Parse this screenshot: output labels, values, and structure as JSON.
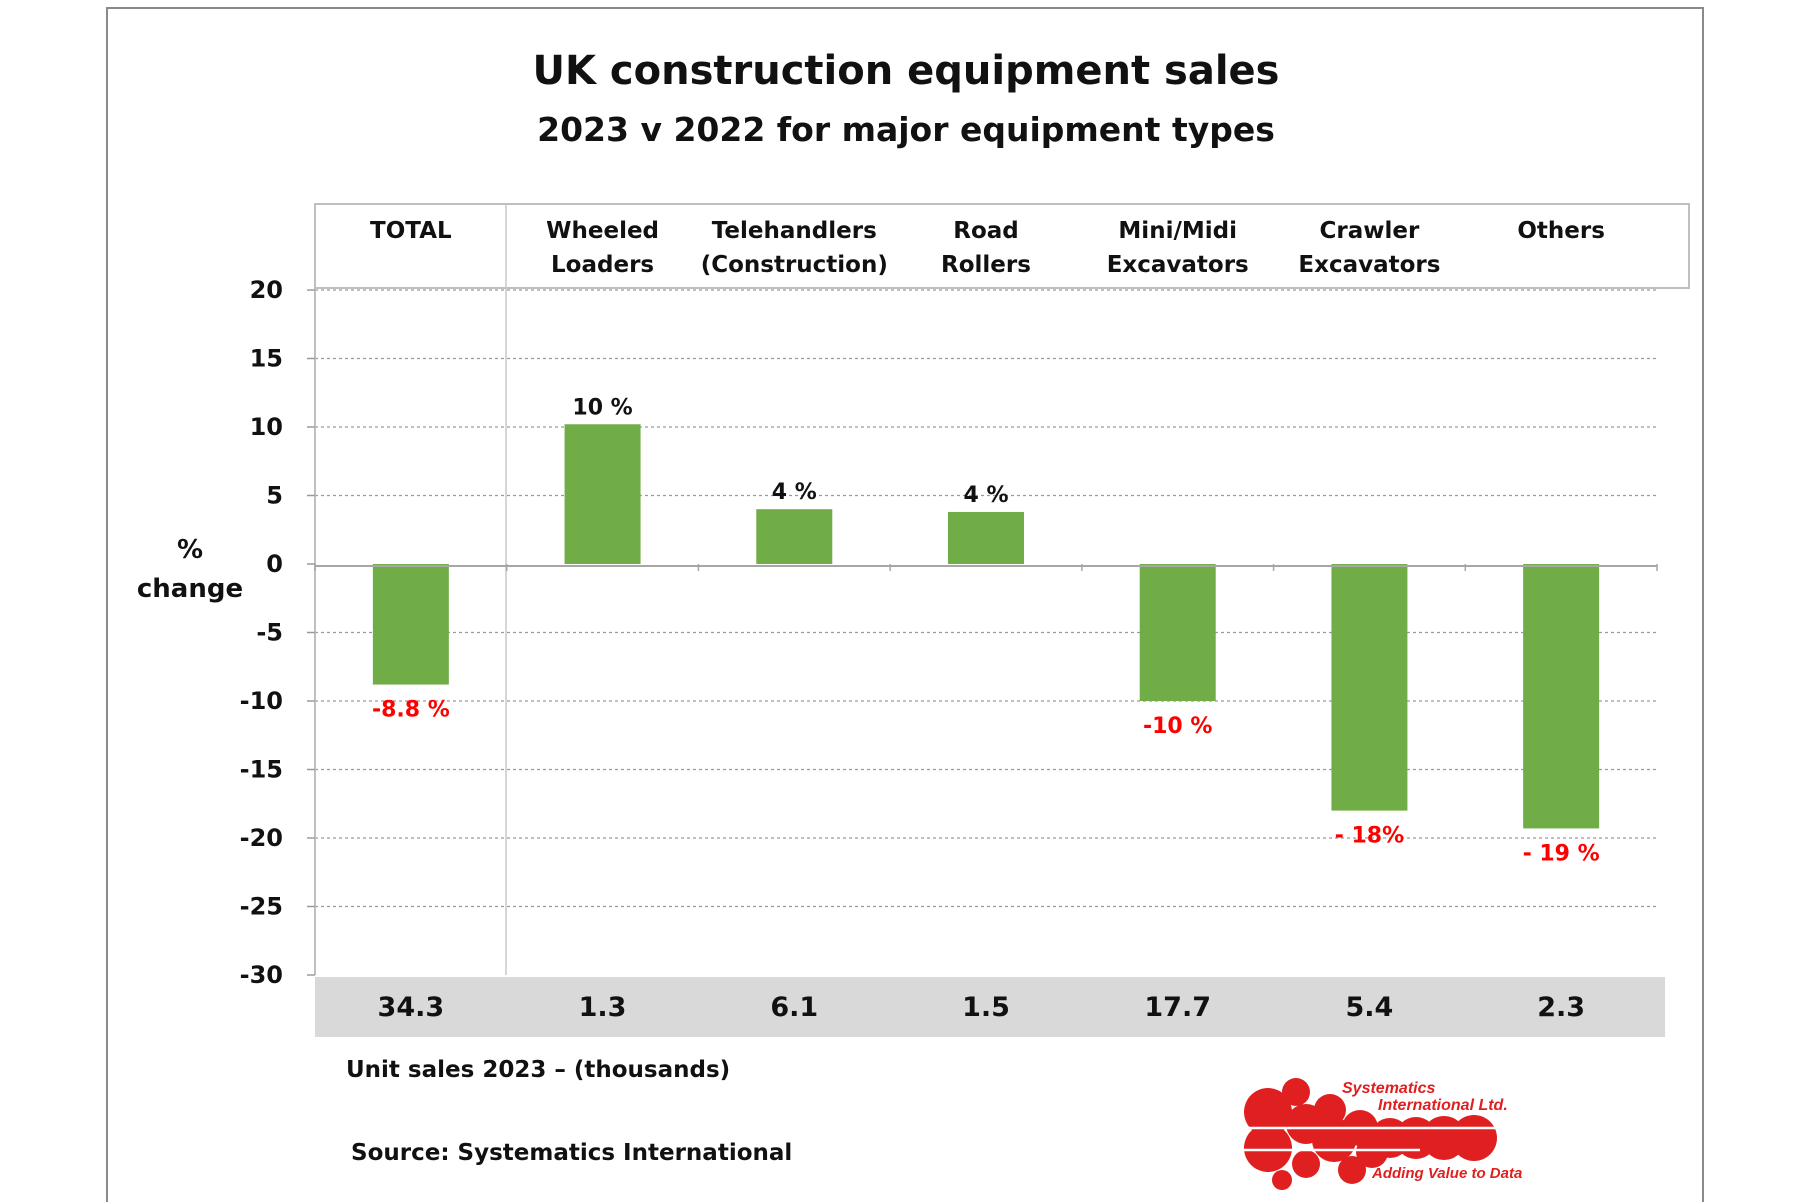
{
  "chart_data": {
    "type": "bar",
    "title": "UK construction equipment sales",
    "subtitle": "2023  v  2022 for major equipment types",
    "ylabel_line1": "%",
    "ylabel_line2": "change",
    "ylim": [
      -30,
      20
    ],
    "yticks": [
      20,
      15,
      10,
      5,
      0,
      -5,
      -10,
      -15,
      -20,
      -25,
      -30
    ],
    "grid": true,
    "bar_color": "#70ad47",
    "positive_label_color": "#111111",
    "negative_label_color": "#ff0000",
    "categories": [
      [
        "TOTAL"
      ],
      [
        "Wheeled",
        "Loaders"
      ],
      [
        "Telehandlers",
        "(Construction)"
      ],
      [
        "Road",
        "Rollers"
      ],
      [
        "Mini/Midi",
        "Excavators"
      ],
      [
        "Crawler",
        "Excavators"
      ],
      [
        "Others"
      ]
    ],
    "values": [
      -8.8,
      10.2,
      4.0,
      3.8,
      -10.0,
      -18.0,
      -19.3
    ],
    "value_labels": [
      "-8.8 %",
      "10 %",
      "4 %",
      "4 %",
      "-10 %",
      "- 18%",
      "- 19 %"
    ],
    "unit_sales": [
      "34.3",
      "1.3",
      "6.1",
      "1.5",
      "17.7",
      "5.4",
      "2.3"
    ],
    "unit_sales_label": "Unit sales 2023 –  (thousands)"
  },
  "source": "Source: Systematics International",
  "logo": {
    "line1": "Systematics",
    "line2": "International Ltd.",
    "tagline": "Adding Value to Data",
    "color": "#e02020"
  }
}
